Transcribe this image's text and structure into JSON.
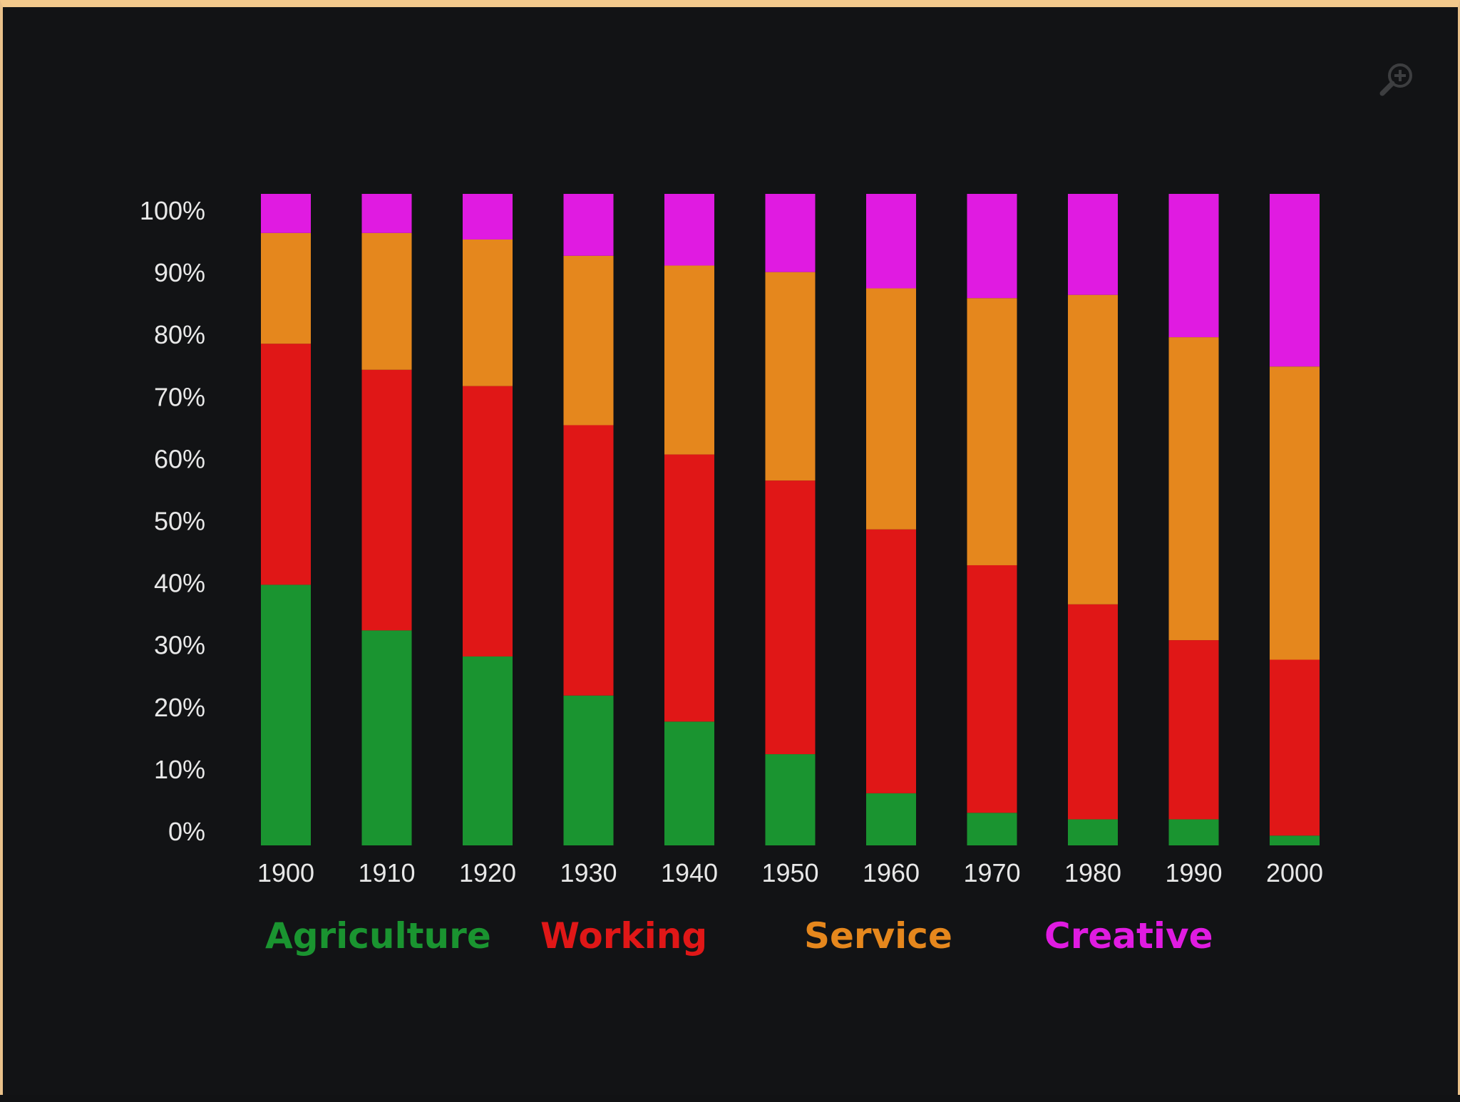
{
  "chart_data": {
    "type": "bar",
    "stacked": true,
    "categories": [
      "1900",
      "1910",
      "1920",
      "1930",
      "1940",
      "1950",
      "1960",
      "1970",
      "1980",
      "1990",
      "2000"
    ],
    "series": [
      {
        "name": "Agriculture",
        "color": "#1a9430",
        "values": [
          40,
          33,
          29,
          23,
          19,
          14,
          8,
          5,
          4,
          4,
          1.5
        ]
      },
      {
        "name": "Working",
        "color": "#e01717",
        "values": [
          37,
          40,
          41.5,
          41.5,
          41,
          42,
          40.5,
          38,
          33,
          27.5,
          27
        ]
      },
      {
        "name": "Service",
        "color": "#e5871d",
        "values": [
          17,
          21,
          22.5,
          26,
          29,
          32,
          37,
          41,
          47.5,
          46.5,
          45
        ]
      },
      {
        "name": "Creative",
        "color": "#e01be1",
        "values": [
          6,
          6,
          7,
          9.5,
          11,
          12,
          14.5,
          16,
          15.5,
          22,
          26.5
        ]
      }
    ],
    "y_tick_labels": [
      "0%",
      "10%",
      "20%",
      "30%",
      "40%",
      "50%",
      "60%",
      "70%",
      "80%",
      "90%",
      "100%"
    ],
    "ylim": [
      0,
      100
    ],
    "title": "",
    "xlabel": "",
    "ylabel": "",
    "legend_position": "bottom"
  },
  "toolbar": {
    "zoom_icon": "zoom-in-icon"
  }
}
